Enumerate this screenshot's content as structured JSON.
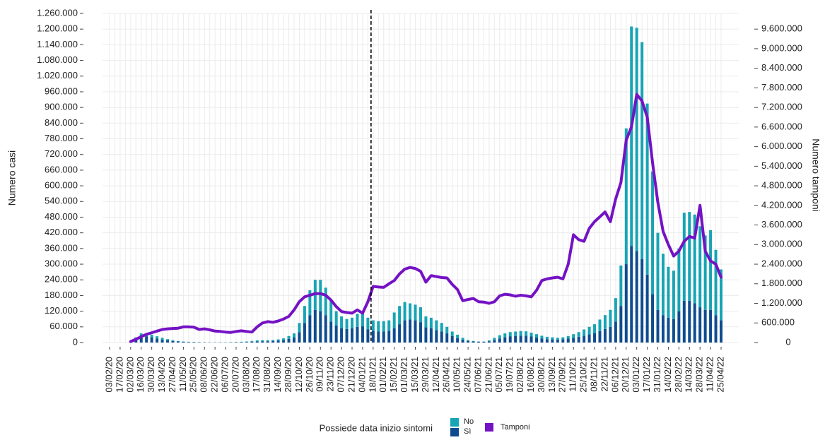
{
  "chart_data": {
    "type": "bar",
    "stacked": true,
    "ylabel": "Numero casi",
    "y2label": "Numero tamponi",
    "legend_title": "Possiede data inizio sintomi",
    "legend": "bottom",
    "grid": true,
    "vline_at": "18/01/21",
    "categories": [
      "03/02/20",
      null,
      "17/02/20",
      null,
      "02/03/20",
      null,
      "16/03/20",
      null,
      "30/03/20",
      null,
      "13/04/20",
      null,
      "27/04/20",
      null,
      "11/05/20",
      null,
      "25/05/20",
      null,
      "08/06/20",
      null,
      "22/06/20",
      null,
      "06/07/20",
      null,
      "20/07/20",
      null,
      "03/08/20",
      null,
      "17/08/20",
      null,
      "31/08/20",
      null,
      "14/09/20",
      null,
      "28/09/20",
      null,
      "12/10/20",
      null,
      "26/10/20",
      null,
      "09/11/20",
      null,
      "23/11/20",
      null,
      "07/12/20",
      null,
      "21/12/20",
      null,
      "04/01/21",
      null,
      "18/01/21",
      null,
      "01/02/21",
      null,
      "15/02/21",
      null,
      "01/03/21",
      null,
      "15/03/21",
      null,
      "29/03/21",
      null,
      "12/04/21",
      null,
      "26/04/21",
      null,
      "10/05/21",
      null,
      "24/05/21",
      null,
      "07/06/21",
      null,
      "21/06/21",
      null,
      "05/07/21",
      null,
      "19/07/21",
      null,
      "02/08/21",
      null,
      "16/08/21",
      null,
      "30/08/21",
      null,
      "13/09/21",
      null,
      "27/09/21",
      null,
      "11/10/21",
      null,
      "25/10/21",
      null,
      "08/11/21",
      null,
      "22/11/21",
      null,
      "06/12/21",
      null,
      "20/12/21",
      null,
      "03/01/22",
      null,
      "17/01/22",
      null,
      "31/01/22",
      null,
      "14/02/22",
      null,
      "28/02/22",
      null,
      "14/03/22",
      null,
      "28/03/22",
      null,
      "11/04/22",
      null,
      "25/04/22"
    ],
    "series": [
      {
        "name": "Sì",
        "color": "#0f4c8f",
        "values": [
          0,
          0,
          0,
          0,
          3000,
          12000,
          22000,
          24000,
          20000,
          15000,
          11000,
          8000,
          6000,
          4000,
          3000,
          2000,
          1500,
          1000,
          1000,
          800,
          800,
          800,
          800,
          1000,
          1200,
          1500,
          2000,
          3000,
          4000,
          5000,
          5000,
          6000,
          7000,
          9000,
          14000,
          20000,
          40000,
          75000,
          105000,
          125000,
          120000,
          105000,
          80000,
          65000,
          55000,
          52000,
          55000,
          60000,
          62000,
          50000,
          45000,
          42000,
          42000,
          45000,
          55000,
          70000,
          85000,
          88000,
          85000,
          78000,
          58000,
          55000,
          48000,
          42000,
          35000,
          25000,
          17000,
          11000,
          6000,
          4000,
          3000,
          3000,
          5000,
          10000,
          15000,
          20000,
          24000,
          25000,
          26000,
          26000,
          23000,
          19000,
          15000,
          13000,
          12000,
          11000,
          12000,
          15000,
          18000,
          22000,
          26000,
          31000,
          36000,
          44000,
          52000,
          60000,
          80000,
          140000,
          300000,
          370000,
          350000,
          320000,
          260000,
          185000,
          125000,
          105000,
          95000,
          90000,
          120000,
          160000,
          160000,
          150000,
          135000,
          125000,
          125000,
          105000,
          85000
        ]
      },
      {
        "name": "No",
        "color": "#17a4b4",
        "values": [
          0,
          0,
          0,
          0,
          2000,
          8000,
          13000,
          12000,
          10000,
          9000,
          7000,
          5000,
          3000,
          2000,
          1000,
          1000,
          1000,
          1000,
          500,
          500,
          500,
          500,
          500,
          800,
          1000,
          1500,
          2000,
          3000,
          4000,
          4000,
          4000,
          4000,
          5000,
          7000,
          11000,
          15000,
          35000,
          65000,
          95000,
          115000,
          120000,
          105000,
          80000,
          55000,
          45000,
          38000,
          40000,
          50000,
          58000,
          45000,
          40000,
          40000,
          40000,
          40000,
          60000,
          70000,
          70000,
          62000,
          60000,
          57000,
          42000,
          40000,
          37000,
          33000,
          25000,
          17000,
          13000,
          7000,
          4000,
          2000,
          1000,
          1000,
          3000,
          8000,
          13000,
          15000,
          16000,
          17000,
          18000,
          17000,
          15000,
          13000,
          11000,
          9000,
          8000,
          7000,
          8000,
          10000,
          14000,
          18000,
          24000,
          29000,
          34000,
          44000,
          53000,
          65000,
          90000,
          155000,
          520000,
          840000,
          855000,
          830000,
          655000,
          470000,
          295000,
          235000,
          195000,
          185000,
          240000,
          337000,
          340000,
          340000,
          310000,
          285000,
          305000,
          250000,
          195000
        ]
      },
      {
        "name": "Tamponi",
        "color": "#7412c4",
        "axis": "y2",
        "type": "line",
        "values": [
          null,
          null,
          null,
          null,
          30000,
          100000,
          180000,
          250000,
          300000,
          350000,
          400000,
          420000,
          430000,
          440000,
          480000,
          480000,
          470000,
          400000,
          420000,
          390000,
          350000,
          340000,
          320000,
          310000,
          340000,
          360000,
          340000,
          320000,
          480000,
          600000,
          640000,
          620000,
          660000,
          720000,
          800000,
          1000000,
          1250000,
          1400000,
          1450000,
          1500000,
          1500000,
          1450000,
          1300000,
          1100000,
          950000,
          920000,
          900000,
          1000000,
          900000,
          1250000,
          1720000,
          1700000,
          1690000,
          1800000,
          1900000,
          2100000,
          2250000,
          2300000,
          2270000,
          2180000,
          1850000,
          2050000,
          2020000,
          1990000,
          1980000,
          1780000,
          1620000,
          1280000,
          1320000,
          1350000,
          1250000,
          1240000,
          1200000,
          1250000,
          1430000,
          1480000,
          1460000,
          1420000,
          1450000,
          1430000,
          1400000,
          1600000,
          1900000,
          1950000,
          1980000,
          2000000,
          1950000,
          2400000,
          3300000,
          3150000,
          3100000,
          3500000,
          3700000,
          3850000,
          4000000,
          3700000,
          4400000,
          4900000,
          6200000,
          6600000,
          7600000,
          7400000,
          6900000,
          5500000,
          4300000,
          3400000,
          3000000,
          2650000,
          2800000,
          3100000,
          3250000,
          3200000,
          4200000,
          2800000,
          2500000,
          2400000,
          2000000
        ]
      }
    ],
    "ylim": [
      0,
      1260000
    ],
    "yticks": [
      0,
      {
        "value": 60000,
        "label": "60.000"
      },
      {
        "value": 120000,
        "label": "120.000"
      },
      {
        "value": 180000,
        "label": "180.000"
      },
      {
        "value": 240000,
        "label": "240.000"
      },
      {
        "value": 300000,
        "label": "300.000"
      },
      {
        "value": 360000,
        "label": "360.000"
      },
      {
        "value": 420000,
        "label": "420.000"
      },
      {
        "value": 480000,
        "label": "480.000"
      },
      {
        "value": 540000,
        "label": "540.000"
      },
      {
        "value": 600000,
        "label": "600.000"
      },
      {
        "value": 660000,
        "label": "660.000"
      },
      {
        "value": 720000,
        "label": "720.000"
      },
      {
        "value": 780000,
        "label": "780.000"
      },
      {
        "value": 840000,
        "label": "840.000"
      },
      {
        "value": 900000,
        "label": "900.000"
      },
      {
        "value": 960000,
        "label": "960.000"
      },
      {
        "value": 1020000,
        "label": "1.020.000"
      },
      {
        "value": 1080000,
        "label": "1.080.000"
      },
      {
        "value": 1140000,
        "label": "1.140.000"
      },
      {
        "value": 1200000,
        "label": "1.200.000"
      },
      {
        "value": 1260000,
        "label": "1.260.000"
      }
    ],
    "y2lim": [
      0,
      10080000
    ],
    "y2ticks": [
      0,
      {
        "value": 600000,
        "label": "600.000"
      },
      {
        "value": 1200000,
        "label": "1.200.000"
      },
      {
        "value": 1800000,
        "label": "1.800.000"
      },
      {
        "value": 2400000,
        "label": "2.400.000"
      },
      {
        "value": 3000000,
        "label": "3.000.000"
      },
      {
        "value": 3600000,
        "label": "3.600.000"
      },
      {
        "value": 4200000,
        "label": "4.200.000"
      },
      {
        "value": 4800000,
        "label": "4.800.000"
      },
      {
        "value": 5400000,
        "label": "5.400.000"
      },
      {
        "value": 6000000,
        "label": "6.000.000"
      },
      {
        "value": 6600000,
        "label": "6.600.000"
      },
      {
        "value": 7200000,
        "label": "7.200.000"
      },
      {
        "value": 7800000,
        "label": "7.800.000"
      },
      {
        "value": 8400000,
        "label": "8.400.000"
      },
      {
        "value": 9000000,
        "label": "9.000.000"
      },
      {
        "value": 9600000,
        "label": "9.600.000"
      }
    ]
  }
}
